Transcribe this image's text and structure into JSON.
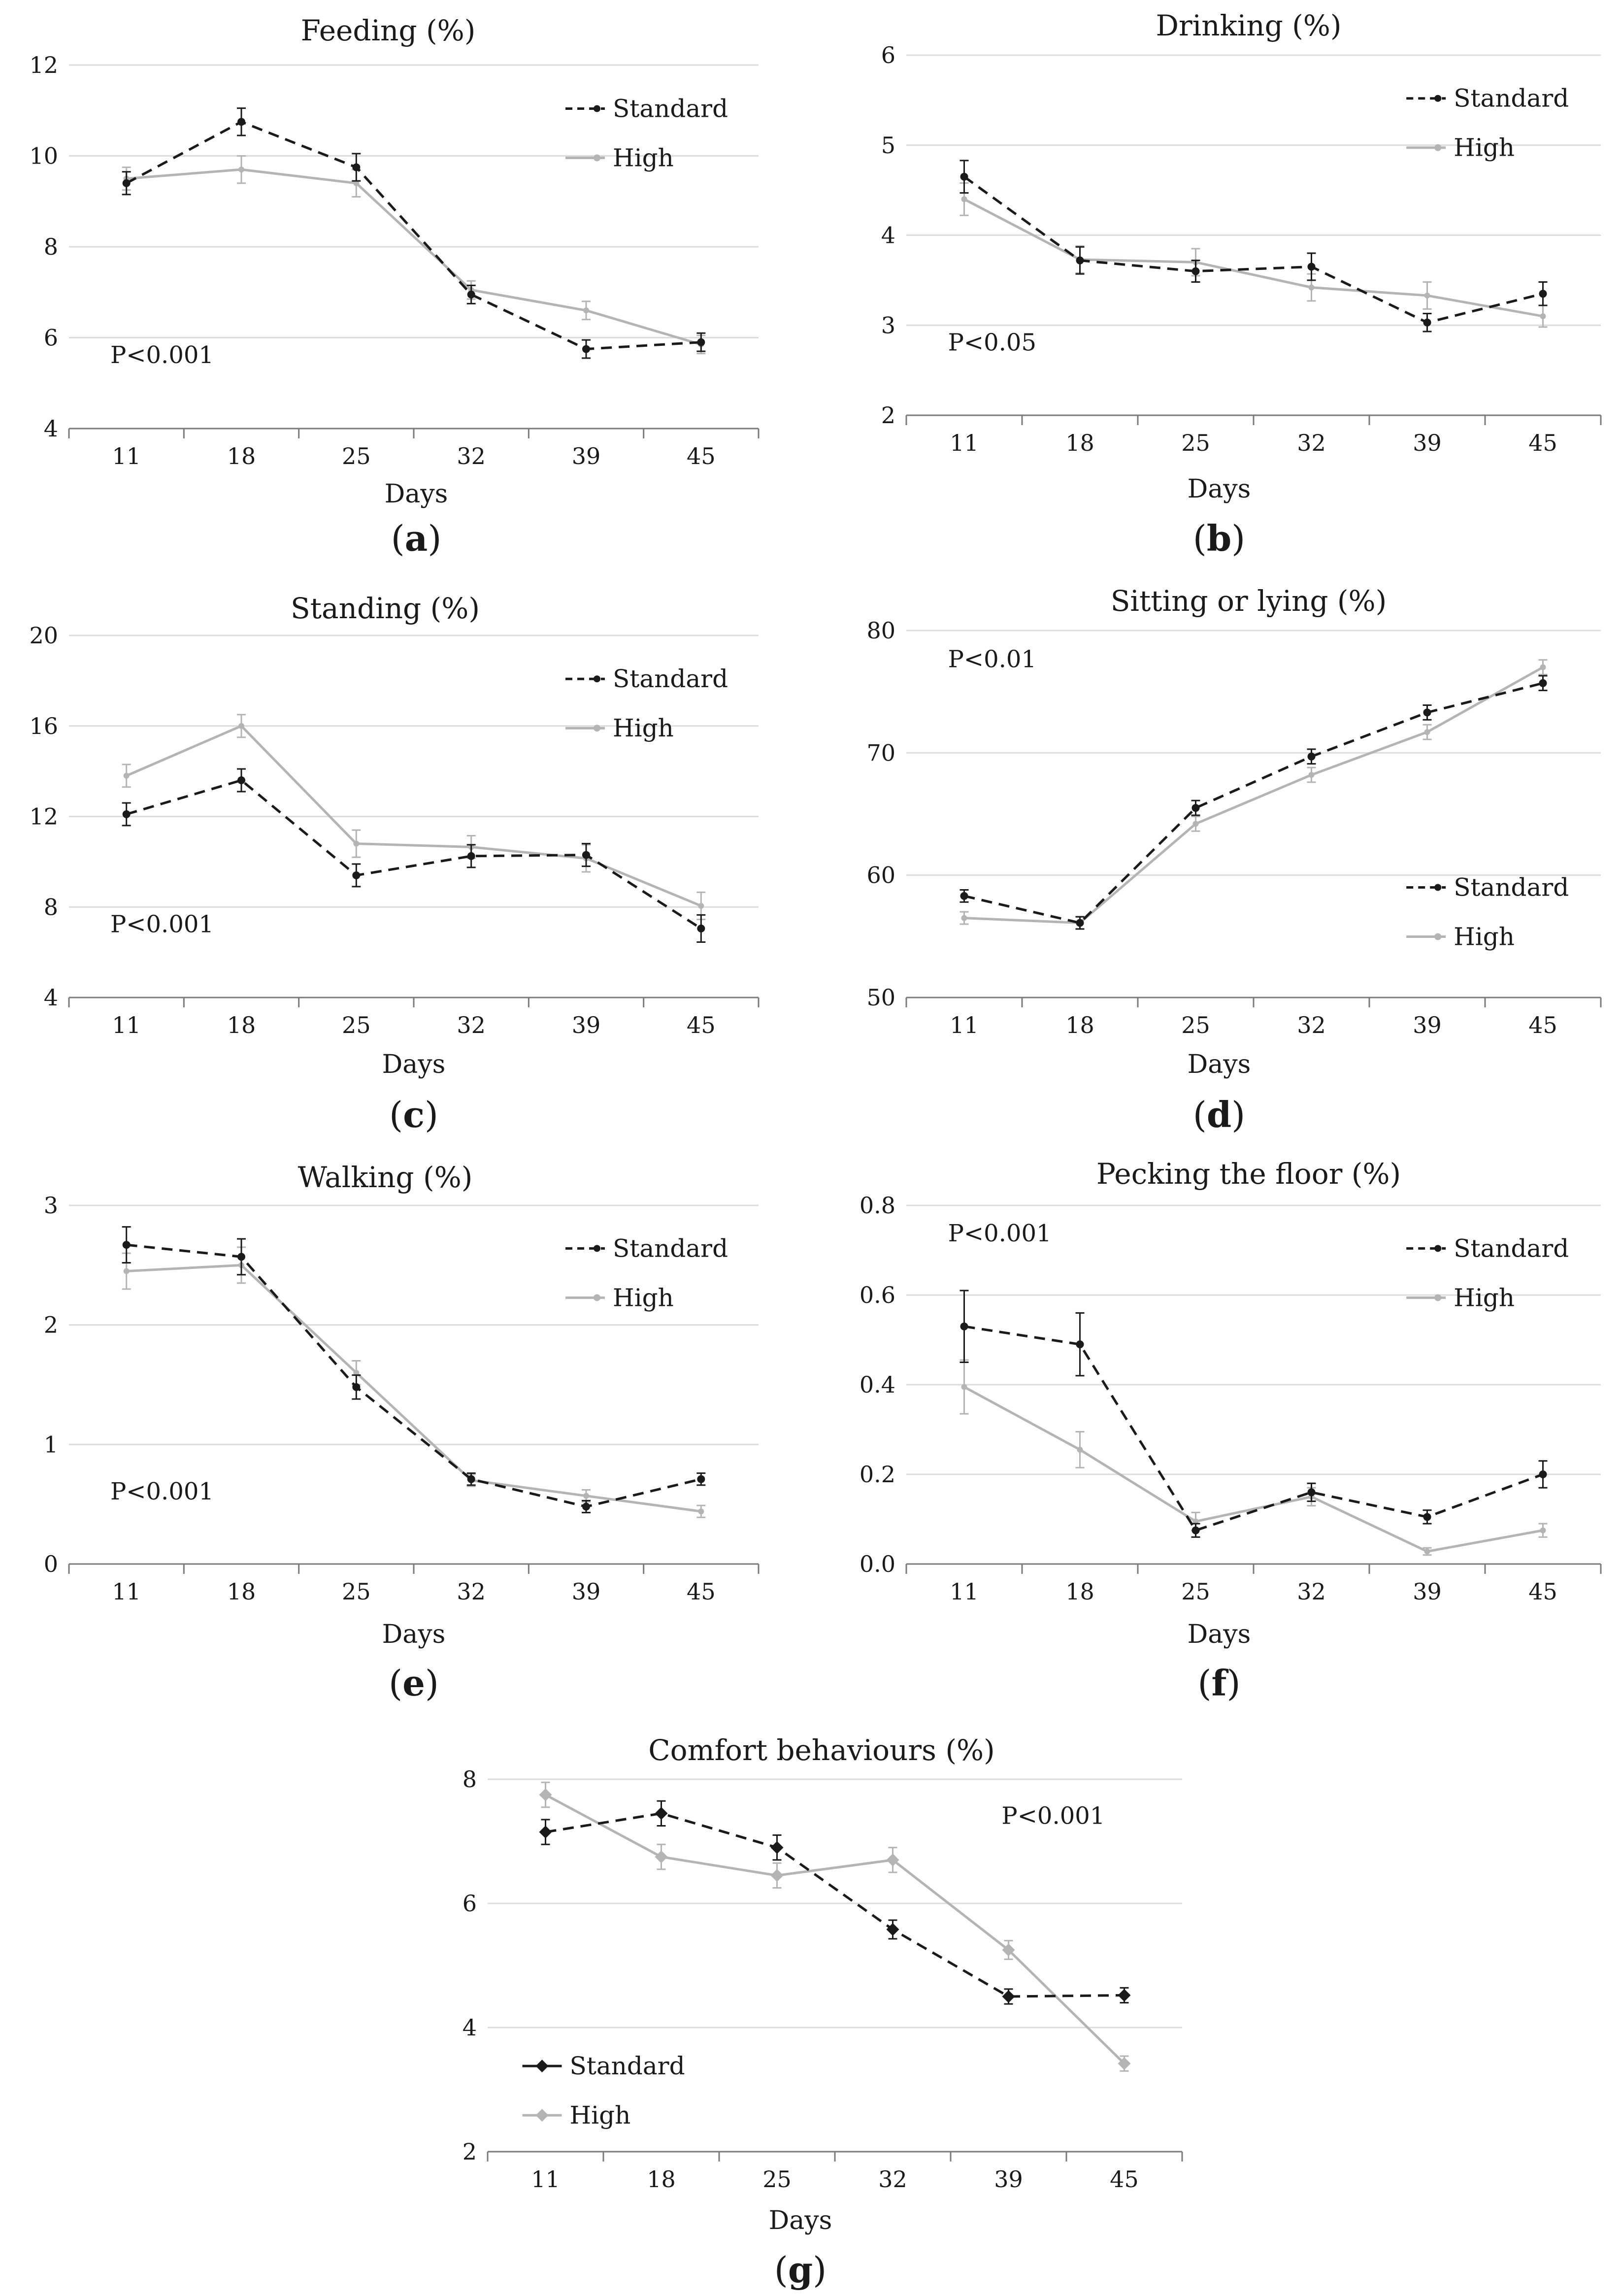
{
  "figure": {
    "colors": {
      "standard": "#1a1a1a",
      "high": "#b4b4b4",
      "grid": "#dcdcdc",
      "axis": "#7a7a7a"
    }
  },
  "chart_data": [
    {
      "id": "a",
      "type": "line",
      "title": "Feeding (%)",
      "caption": "a",
      "xlabel": "Days",
      "ylabel": "",
      "categories": [
        "11",
        "18",
        "25",
        "32",
        "39",
        "45"
      ],
      "ylim": [
        4,
        12
      ],
      "yticks": [
        "4",
        "6",
        "8",
        "10",
        "12"
      ],
      "legend": [
        "Standard",
        "High"
      ],
      "legend_position": "top-right",
      "annotation": "P<0.001",
      "annotation_position": "bottom-left",
      "series": [
        {
          "name": "Standard",
          "values": [
            9.4,
            10.75,
            9.75,
            6.95,
            5.75,
            5.9
          ],
          "errors": [
            0.25,
            0.3,
            0.3,
            0.2,
            0.2,
            0.2
          ]
        },
        {
          "name": "High",
          "values": [
            9.5,
            9.7,
            9.4,
            7.05,
            6.6,
            5.85
          ],
          "errors": [
            0.25,
            0.3,
            0.3,
            0.2,
            0.2,
            0.2
          ]
        }
      ]
    },
    {
      "id": "b",
      "type": "line",
      "title": "Drinking (%)",
      "caption": "b",
      "xlabel": "Days",
      "ylabel": "",
      "categories": [
        "11",
        "18",
        "25",
        "32",
        "39",
        "45"
      ],
      "ylim": [
        2,
        6
      ],
      "yticks": [
        "2",
        "3",
        "4",
        "5",
        "6"
      ],
      "legend": [
        "Standard",
        "High"
      ],
      "legend_position": "top-right",
      "annotation": "P<0.05",
      "annotation_position": "bottom-left",
      "series": [
        {
          "name": "Standard",
          "values": [
            4.65,
            3.72,
            3.6,
            3.65,
            3.03,
            3.35
          ],
          "errors": [
            0.18,
            0.15,
            0.12,
            0.15,
            0.1,
            0.13
          ]
        },
        {
          "name": "High",
          "values": [
            4.4,
            3.73,
            3.7,
            3.42,
            3.33,
            3.1
          ],
          "errors": [
            0.18,
            0.15,
            0.15,
            0.15,
            0.15,
            0.12
          ]
        }
      ]
    },
    {
      "id": "c",
      "type": "line",
      "title": "Standing (%)",
      "caption": "c",
      "xlabel": "Days",
      "ylabel": "",
      "categories": [
        "11",
        "18",
        "25",
        "32",
        "39",
        "45"
      ],
      "ylim": [
        4,
        20
      ],
      "yticks": [
        "4",
        "8",
        "12",
        "16",
        "20"
      ],
      "legend": [
        "Standard",
        "High"
      ],
      "legend_position": "top-right",
      "annotation": "P<0.001",
      "annotation_position": "bottom-left",
      "series": [
        {
          "name": "Standard",
          "values": [
            12.1,
            13.6,
            9.4,
            10.25,
            10.3,
            7.05
          ],
          "errors": [
            0.5,
            0.5,
            0.5,
            0.5,
            0.5,
            0.6
          ]
        },
        {
          "name": "High",
          "values": [
            13.8,
            16.0,
            10.8,
            10.65,
            10.15,
            8.05
          ],
          "errors": [
            0.5,
            0.5,
            0.6,
            0.5,
            0.6,
            0.6
          ]
        }
      ]
    },
    {
      "id": "d",
      "type": "line",
      "title": "Sitting or lying (%)",
      "caption": "d",
      "xlabel": "Days",
      "ylabel": "",
      "categories": [
        "11",
        "18",
        "25",
        "32",
        "39",
        "45"
      ],
      "ylim": [
        50,
        80
      ],
      "yticks": [
        "50",
        "60",
        "70",
        "80"
      ],
      "legend": [
        "Standard",
        "High"
      ],
      "legend_position": "bottom-right",
      "annotation": "P<0.01",
      "annotation_position": "top-left",
      "series": [
        {
          "name": "Standard",
          "values": [
            58.3,
            56.1,
            65.5,
            69.7,
            73.3,
            75.7
          ],
          "errors": [
            0.5,
            0.5,
            0.6,
            0.6,
            0.6,
            0.6
          ]
        },
        {
          "name": "High",
          "values": [
            56.5,
            56.1,
            64.2,
            68.2,
            71.7,
            77.0
          ],
          "errors": [
            0.5,
            0.5,
            0.6,
            0.6,
            0.6,
            0.6
          ]
        }
      ]
    },
    {
      "id": "e",
      "type": "line",
      "title": "Walking (%)",
      "caption": "e",
      "xlabel": "Days",
      "ylabel": "",
      "categories": [
        "11",
        "18",
        "25",
        "32",
        "39",
        "45"
      ],
      "ylim": [
        0,
        3
      ],
      "yticks": [
        "0",
        "1",
        "2",
        "3"
      ],
      "legend": [
        "Standard",
        "High"
      ],
      "legend_position": "top-right",
      "annotation": "P<0.001",
      "annotation_position": "bottom-left",
      "series": [
        {
          "name": "Standard",
          "values": [
            2.67,
            2.57,
            1.48,
            0.71,
            0.48,
            0.71
          ],
          "errors": [
            0.15,
            0.15,
            0.1,
            0.05,
            0.05,
            0.05
          ]
        },
        {
          "name": "High",
          "values": [
            2.45,
            2.5,
            1.6,
            0.7,
            0.57,
            0.44
          ],
          "errors": [
            0.15,
            0.15,
            0.1,
            0.05,
            0.05,
            0.05
          ]
        }
      ]
    },
    {
      "id": "f",
      "type": "line",
      "title": "Pecking the floor (%)",
      "caption": "f",
      "xlabel": "Days",
      "ylabel": "",
      "categories": [
        "11",
        "18",
        "25",
        "32",
        "39",
        "45"
      ],
      "ylim": [
        0,
        0.8
      ],
      "yticks": [
        "0.0",
        "0.2",
        "0.4",
        "0.6",
        "0.8"
      ],
      "legend": [
        "Standard",
        "High"
      ],
      "legend_position": "top-right",
      "annotation": "P<0.001",
      "annotation_position": "top-left",
      "series": [
        {
          "name": "Standard",
          "values": [
            0.53,
            0.49,
            0.075,
            0.16,
            0.105,
            0.2
          ],
          "errors": [
            0.08,
            0.07,
            0.015,
            0.02,
            0.015,
            0.03
          ]
        },
        {
          "name": "High",
          "values": [
            0.395,
            0.255,
            0.095,
            0.15,
            0.028,
            0.075
          ],
          "errors": [
            0.06,
            0.04,
            0.02,
            0.02,
            0.008,
            0.015
          ]
        }
      ]
    },
    {
      "id": "g",
      "type": "line",
      "title": "Comfort behaviours (%)",
      "caption": "g",
      "xlabel": "Days",
      "ylabel": "",
      "categories": [
        "11",
        "18",
        "25",
        "32",
        "39",
        "45"
      ],
      "ylim": [
        2,
        8
      ],
      "yticks": [
        "2",
        "4",
        "6",
        "8"
      ],
      "legend": [
        "Standard",
        "High"
      ],
      "legend_position": "bottom-left",
      "annotation": "P<0.001",
      "annotation_position": "top-right",
      "series": [
        {
          "name": "Standard",
          "values": [
            7.15,
            7.45,
            6.9,
            5.58,
            4.5,
            4.52
          ],
          "errors": [
            0.2,
            0.2,
            0.2,
            0.15,
            0.12,
            0.12
          ]
        },
        {
          "name": "High",
          "values": [
            7.75,
            6.75,
            6.45,
            6.7,
            5.25,
            3.42
          ],
          "errors": [
            0.2,
            0.2,
            0.2,
            0.2,
            0.15,
            0.12
          ]
        }
      ]
    }
  ]
}
